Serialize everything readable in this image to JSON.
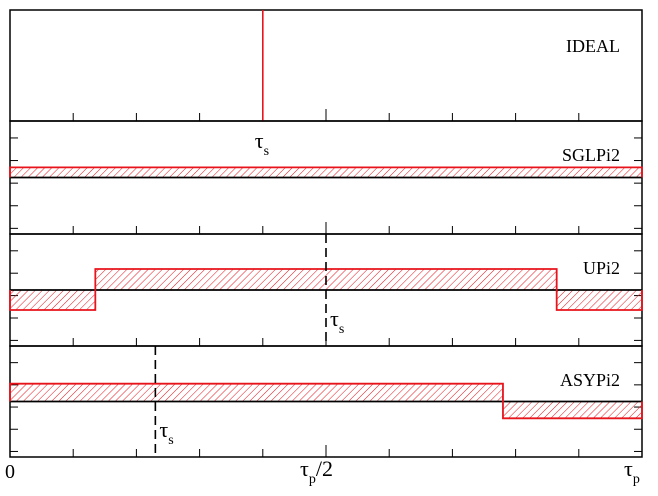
{
  "chart_data": {
    "type": "area",
    "x_range": [
      0,
      1
    ],
    "x_ticks": [
      {
        "x": 0,
        "main": "0",
        "sub": ""
      },
      {
        "x": 0.5,
        "main": "τ",
        "sub": "p",
        "suffix": "/2"
      },
      {
        "x": 1,
        "main": "τ",
        "sub": "p",
        "suffix": ""
      }
    ],
    "y_range": [
      0,
      1
    ],
    "panels": [
      {
        "name": "IDEAL",
        "kind": "impulse",
        "x": 0.4,
        "marker": {
          "x": 0.4,
          "main": "τ",
          "sub": "s",
          "dashed": false
        }
      },
      {
        "name": "SGLPi2",
        "kind": "steps",
        "baseline": 0.5,
        "segments": [
          {
            "x0": 0,
            "x1": 1,
            "y": 0.6
          }
        ]
      },
      {
        "name": "UPi2",
        "kind": "steps",
        "baseline": 0.5,
        "segments": [
          {
            "x0": 0,
            "x1": 0.135,
            "y": 0.3
          },
          {
            "x0": 0.135,
            "x1": 0.865,
            "y": 0.71
          },
          {
            "x0": 0.865,
            "x1": 1,
            "y": 0.3
          }
        ],
        "marker": {
          "x": 0.5,
          "main": "τ",
          "sub": "s",
          "dashed": true
        }
      },
      {
        "name": "ASYPi2",
        "kind": "steps",
        "baseline": 0.5,
        "segments": [
          {
            "x0": 0,
            "x1": 0.78,
            "y": 0.68
          },
          {
            "x0": 0.78,
            "x1": 1,
            "y": 0.33
          }
        ],
        "marker": {
          "x": 0.23,
          "main": "τ",
          "sub": "s",
          "dashed": true
        }
      }
    ],
    "grid": false,
    "legend": "none"
  },
  "colors": {
    "signal": "#e8141c",
    "axis": "#000000"
  }
}
